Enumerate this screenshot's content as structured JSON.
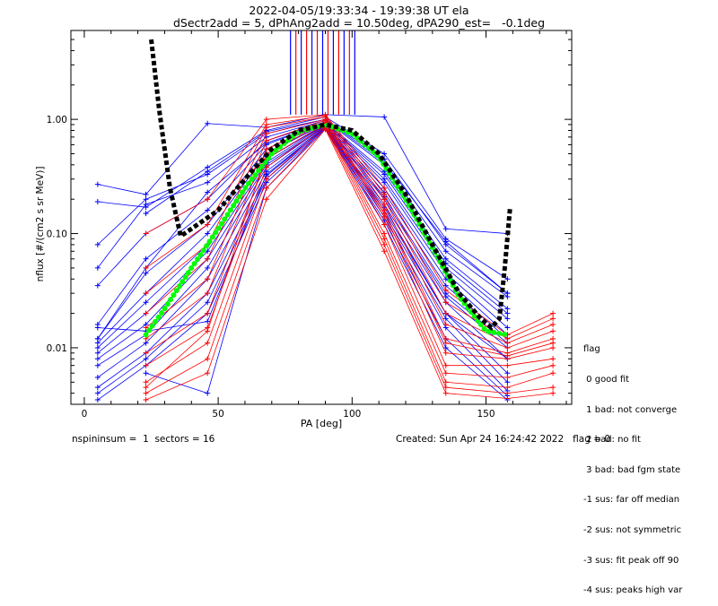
{
  "title_line1": "2022-04-05/19:33:34 - 19:39:38 UT ela",
  "title_line2": "dSectr2add = 5, dPhAng2add = 10.50deg, dPA290_est=   -0.1deg",
  "footer_left": "nspininsum =  1  sectors = 16",
  "footer_right": "Created: Sun Apr 24 16:24:42 2022   flag = 0",
  "legend": {
    "title": "flag",
    "items": [
      " 0 good fit",
      " 1 bad: not converge",
      " 2 bad: no fit",
      " 3 bad: bad fgm state",
      "-1 sus: far off median",
      "-2 sus: not symmetric",
      "-3 sus: fit peak off 90",
      "-4 sus: peaks high var"
    ]
  },
  "colors": {
    "red": "#ff0000",
    "blue": "#0000ff",
    "green": "#00ff00",
    "black": "#000000"
  },
  "chart_data": {
    "type": "line",
    "xlabel": "PA [deg]",
    "ylabel": "nflux [#/(cm2 s sr MeV)]",
    "xlim": [
      -5,
      182
    ],
    "ylim": [
      0.0032,
      6.0
    ],
    "yscale": "log",
    "xticks": [
      0,
      50,
      100,
      150
    ],
    "yticks": [
      0.01,
      0.1,
      1.0
    ],
    "ytick_labels": [
      "0.01",
      "0.10",
      "1.00"
    ],
    "pa_bins": [
      5,
      23,
      46,
      68,
      90,
      112,
      135,
      158,
      175
    ],
    "spike_lines_x": [
      77,
      79,
      81,
      83,
      85,
      87,
      89,
      91,
      93,
      95,
      97,
      99,
      101
    ],
    "series": [
      {
        "color": "blue",
        "values": [
          0.27,
          0.22,
          0.92,
          0.85,
          1.1,
          1.05,
          0.11,
          0.1,
          null
        ]
      },
      {
        "color": "blue",
        "values": [
          0.19,
          0.17,
          0.38,
          0.8,
          1.05,
          0.5,
          0.09,
          0.04,
          null
        ]
      },
      {
        "color": "blue",
        "values": [
          0.08,
          0.2,
          0.33,
          0.75,
          1.0,
          0.45,
          0.08,
          0.03,
          null
        ]
      },
      {
        "color": "blue",
        "values": [
          0.05,
          0.18,
          0.28,
          0.7,
          0.98,
          0.4,
          0.07,
          0.028,
          null
        ]
      },
      {
        "color": "blue",
        "values": [
          0.035,
          0.1,
          0.2,
          0.65,
          0.95,
          0.35,
          0.06,
          0.022,
          null
        ]
      },
      {
        "color": "blue",
        "values": [
          0.016,
          0.06,
          0.16,
          0.6,
          0.95,
          0.3,
          0.05,
          0.018,
          null
        ]
      },
      {
        "color": "blue",
        "values": [
          0.012,
          0.045,
          0.12,
          0.55,
          0.93,
          0.28,
          0.045,
          0.015,
          null
        ]
      },
      {
        "color": "blue",
        "values": [
          0.011,
          0.03,
          0.1,
          0.5,
          0.92,
          0.25,
          0.04,
          0.013,
          null
        ]
      },
      {
        "color": "blue",
        "values": [
          0.01,
          0.025,
          0.08,
          0.45,
          0.9,
          0.23,
          0.035,
          0.012,
          null
        ]
      },
      {
        "color": "blue",
        "values": [
          0.009,
          0.02,
          0.07,
          0.42,
          0.9,
          0.21,
          0.03,
          0.011,
          null
        ]
      },
      {
        "color": "blue",
        "values": [
          0.008,
          0.016,
          0.06,
          0.4,
          0.88,
          0.2,
          0.028,
          0.01,
          null
        ]
      },
      {
        "color": "blue",
        "values": [
          0.007,
          0.013,
          0.05,
          0.38,
          0.87,
          0.18,
          0.025,
          0.008,
          null
        ]
      },
      {
        "color": "blue",
        "values": [
          0.0055,
          0.011,
          0.04,
          0.35,
          0.86,
          0.17,
          0.02,
          0.006,
          null
        ]
      },
      {
        "color": "blue",
        "values": [
          0.0045,
          0.009,
          0.03,
          0.32,
          0.85,
          0.15,
          0.018,
          0.005,
          null
        ]
      },
      {
        "color": "blue",
        "values": [
          0.004,
          0.008,
          0.025,
          0.3,
          0.84,
          0.14,
          0.015,
          0.0042,
          null
        ]
      },
      {
        "color": "blue",
        "values": [
          0.0035,
          0.007,
          0.02,
          0.28,
          0.83,
          0.13,
          0.012,
          0.0038,
          null
        ]
      },
      {
        "color": "blue",
        "values": [
          null,
          0.006,
          0.004,
          0.25,
          0.82,
          0.12,
          0.01,
          0.0035,
          null
        ]
      },
      {
        "color": "blue",
        "values": [
          0.015,
          0.014,
          0.017,
          0.33,
          0.85,
          0.16,
          0.02,
          0.008,
          null
        ]
      },
      {
        "color": "blue",
        "values": [
          0.012,
          0.05,
          0.23,
          0.62,
          0.93,
          0.33,
          0.055,
          0.02,
          null
        ]
      },
      {
        "color": "blue",
        "values": [
          null,
          0.15,
          0.35,
          0.78,
          1.0,
          0.42,
          0.085,
          0.03,
          null
        ]
      },
      {
        "color": "red",
        "values": [
          null,
          0.1,
          0.2,
          1.0,
          1.1,
          0.25,
          0.032,
          0.013,
          0.02
        ]
      },
      {
        "color": "red",
        "values": [
          null,
          0.05,
          0.12,
          0.9,
          1.08,
          0.22,
          0.025,
          0.012,
          0.018
        ]
      },
      {
        "color": "red",
        "values": [
          null,
          0.03,
          0.08,
          0.85,
          1.05,
          0.2,
          0.02,
          0.011,
          0.016
        ]
      },
      {
        "color": "red",
        "values": [
          null,
          0.02,
          0.06,
          0.75,
          1.0,
          0.18,
          0.016,
          0.01,
          0.014
        ]
      },
      {
        "color": "red",
        "values": [
          null,
          0.015,
          0.04,
          0.65,
          0.98,
          0.16,
          0.012,
          0.009,
          0.012
        ]
      },
      {
        "color": "red",
        "values": [
          null,
          0.012,
          0.03,
          0.55,
          0.95,
          0.14,
          0.009,
          0.008,
          0.01
        ]
      },
      {
        "color": "red",
        "values": [
          null,
          0.009,
          0.02,
          0.45,
          0.92,
          0.12,
          0.007,
          0.007,
          0.008
        ]
      },
      {
        "color": "red",
        "values": [
          null,
          0.007,
          0.015,
          0.38,
          0.9,
          0.1,
          0.006,
          0.0055,
          0.007
        ]
      },
      {
        "color": "red",
        "values": [
          null,
          0.005,
          0.011,
          0.3,
          0.88,
          0.09,
          0.005,
          0.0045,
          0.006
        ]
      },
      {
        "color": "red",
        "values": [
          null,
          0.004,
          0.008,
          0.25,
          0.85,
          0.08,
          0.0045,
          0.004,
          0.0045
        ]
      },
      {
        "color": "red",
        "values": [
          null,
          0.0035,
          0.006,
          0.2,
          0.82,
          0.07,
          0.004,
          0.0036,
          0.004
        ]
      },
      {
        "color": "red",
        "values": [
          null,
          0.0045,
          0.014,
          0.5,
          0.95,
          0.15,
          0.011,
          0.0085,
          0.011
        ]
      }
    ],
    "fit_green": {
      "x": [
        23,
        30,
        40,
        50,
        60,
        70,
        80,
        90,
        100,
        110,
        120,
        130,
        140,
        150,
        158
      ],
      "y": [
        0.013,
        0.022,
        0.05,
        0.11,
        0.25,
        0.5,
        0.78,
        0.9,
        0.75,
        0.47,
        0.2,
        0.075,
        0.028,
        0.014,
        0.013
      ]
    },
    "fit_black": {
      "x": [
        25,
        28,
        32,
        36,
        40,
        50,
        60,
        70,
        80,
        90,
        100,
        110,
        120,
        130,
        140,
        148,
        152,
        155,
        157,
        159
      ],
      "y": [
        5.0,
        1.2,
        0.25,
        0.095,
        0.11,
        0.16,
        0.3,
        0.55,
        0.8,
        0.9,
        0.8,
        0.5,
        0.22,
        0.08,
        0.03,
        0.018,
        0.015,
        0.018,
        0.05,
        0.17
      ]
    }
  }
}
